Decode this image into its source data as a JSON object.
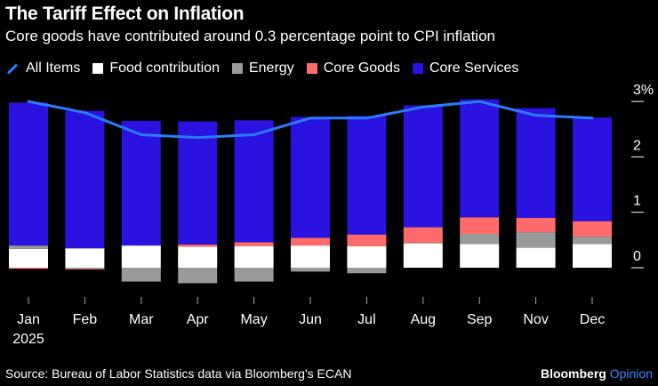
{
  "header": {
    "title": "The Tariff Effect on Inflation",
    "subtitle": "Core goods have contributed around 0.3 percentage point to CPI inflation"
  },
  "legend": [
    {
      "label": "All Items",
      "kind": "line",
      "color": "#2b7bff"
    },
    {
      "label": "Food contribution",
      "kind": "box",
      "color": "#ffffff"
    },
    {
      "label": "Energy",
      "kind": "box",
      "color": "#9a9a9a"
    },
    {
      "label": "Core Goods",
      "kind": "box",
      "color": "#ff6b6b"
    },
    {
      "label": "Core Services",
      "kind": "box",
      "color": "#2a12e0"
    }
  ],
  "footer": {
    "source": "Source: Bureau of Labor Statistics data via Bloomberg's ECAN",
    "brand_main": "Bloomberg",
    "brand_opinion": "Opinion"
  },
  "chart_data": {
    "type": "bar",
    "stacked": true,
    "title": "The Tariff Effect on Inflation",
    "subtitle": "Core goods have contributed around 0.3 percentage point to CPI inflation",
    "categories": [
      "Jan",
      "Feb",
      "Mar",
      "Apr",
      "May",
      "Jun",
      "Jul",
      "Aug",
      "Sep",
      "Nov",
      "Dec"
    ],
    "x_sublabel": "2025",
    "ylim": [
      -0.3,
      3.1
    ],
    "yticks": [
      0,
      1,
      2,
      3
    ],
    "ytick_labels": [
      "0",
      "1",
      "2",
      "3%"
    ],
    "series": [
      {
        "name": "Food contribution",
        "color": "#ffffff",
        "values": [
          0.34,
          0.35,
          0.4,
          0.38,
          0.39,
          0.4,
          0.39,
          0.44,
          0.43,
          0.36,
          0.43
        ]
      },
      {
        "name": "Energy",
        "color": "#9a9a9a",
        "values": [
          0.06,
          -0.02,
          -0.25,
          -0.28,
          -0.25,
          -0.07,
          -0.1,
          0.01,
          0.18,
          0.28,
          0.13
        ]
      },
      {
        "name": "Core Goods",
        "color": "#ff6b6b",
        "values": [
          -0.02,
          -0.01,
          0.0,
          0.04,
          0.07,
          0.14,
          0.21,
          0.28,
          0.3,
          0.26,
          0.28
        ]
      },
      {
        "name": "Core Services",
        "color": "#2a12e0",
        "values": [
          2.58,
          2.48,
          2.25,
          2.22,
          2.2,
          2.18,
          2.14,
          2.2,
          2.13,
          1.98,
          1.87
        ]
      }
    ],
    "line": {
      "name": "All Items",
      "color": "#2b7bff",
      "values": [
        3.0,
        2.8,
        2.4,
        2.35,
        2.4,
        2.7,
        2.7,
        2.9,
        3.0,
        2.75,
        2.7
      ]
    }
  }
}
